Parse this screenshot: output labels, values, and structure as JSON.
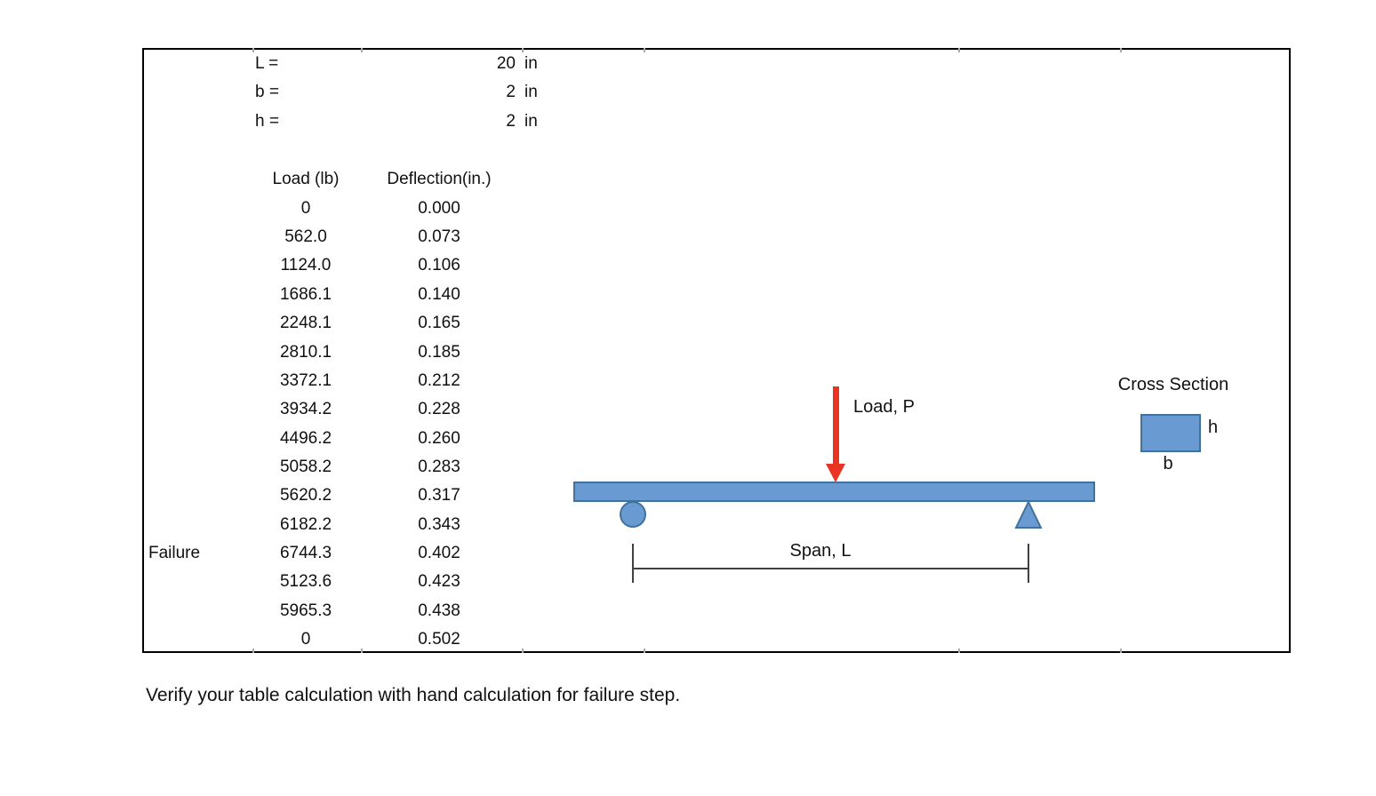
{
  "parameters": {
    "rows": [
      {
        "label": "L =",
        "value": "20",
        "unit": "in"
      },
      {
        "label": "b =",
        "value": "2",
        "unit": "in"
      },
      {
        "label": "h =",
        "value": "2",
        "unit": "in"
      }
    ]
  },
  "table": {
    "load_header": "Load (lb)",
    "deflection_header": "Deflection(in.)",
    "rows": [
      {
        "annotation": "",
        "load": "0",
        "deflection": "0.000"
      },
      {
        "annotation": "",
        "load": "562.0",
        "deflection": "0.073"
      },
      {
        "annotation": "",
        "load": "1124.0",
        "deflection": "0.106"
      },
      {
        "annotation": "",
        "load": "1686.1",
        "deflection": "0.140"
      },
      {
        "annotation": "",
        "load": "2248.1",
        "deflection": "0.165"
      },
      {
        "annotation": "",
        "load": "2810.1",
        "deflection": "0.185"
      },
      {
        "annotation": "",
        "load": "3372.1",
        "deflection": "0.212"
      },
      {
        "annotation": "",
        "load": "3934.2",
        "deflection": "0.228"
      },
      {
        "annotation": "",
        "load": "4496.2",
        "deflection": "0.260"
      },
      {
        "annotation": "",
        "load": "5058.2",
        "deflection": "0.283"
      },
      {
        "annotation": "",
        "load": "5620.2",
        "deflection": "0.317"
      },
      {
        "annotation": "",
        "load": "6182.2",
        "deflection": "0.343"
      },
      {
        "annotation": "Failure",
        "load": "6744.3",
        "deflection": "0.402"
      },
      {
        "annotation": "",
        "load": "5123.6",
        "deflection": "0.423"
      },
      {
        "annotation": "",
        "load": "5965.3",
        "deflection": "0.438"
      },
      {
        "annotation": "",
        "load": "0",
        "deflection": "0.502"
      }
    ]
  },
  "diagram": {
    "load_label": "Load, P",
    "span_label": "Span, L",
    "cross_section_title": "Cross Section",
    "height_label": "h",
    "width_label": "b",
    "colors": {
      "beam_fill": "#6A9AD2",
      "beam_stroke": "#41719C",
      "arrow_red": "#E93323",
      "dimension_line": "#404040"
    }
  },
  "footer": {
    "instruction": "Verify your table calculation with hand calculation for failure step."
  }
}
